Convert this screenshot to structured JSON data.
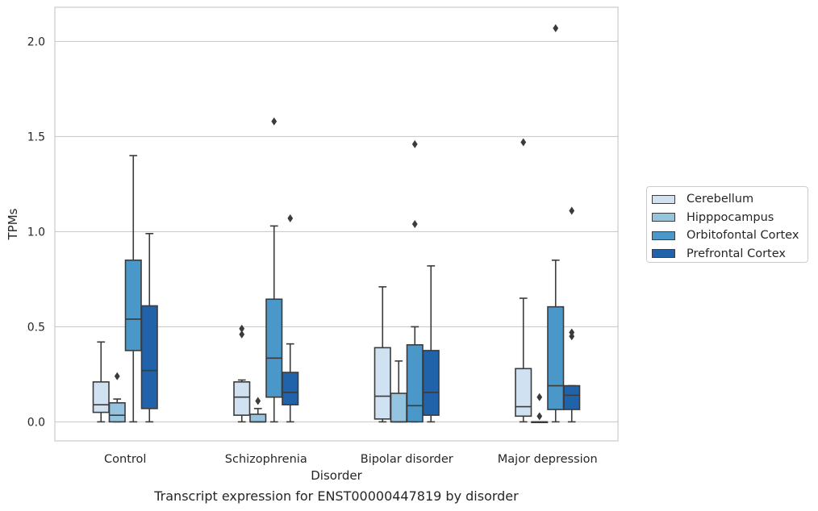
{
  "chart_data": {
    "type": "boxplot",
    "xlabel": "Disorder",
    "ylabel": "TPMs",
    "ylim": [
      -0.1,
      2.18
    ],
    "yticks": [
      "0.0",
      "0.5",
      "1.0",
      "1.5",
      "2.0"
    ],
    "grid": true,
    "legend_position": "right, outside plot",
    "categories": [
      "Control",
      "Schizophrenia",
      "Bipolar disorder",
      "Major depression"
    ],
    "series": [
      {
        "name": "Cerebellum",
        "color": "#d0e1f2",
        "boxes": [
          {
            "whislo": 0.0,
            "q1": 0.05,
            "med": 0.09,
            "q3": 0.21,
            "whishi": 0.42,
            "fliers": []
          },
          {
            "whislo": 0.0,
            "q1": 0.035,
            "med": 0.13,
            "q3": 0.21,
            "whishi": 0.22,
            "fliers": [
              0.46,
              0.49
            ]
          },
          {
            "whislo": 0.0,
            "q1": 0.015,
            "med": 0.135,
            "q3": 0.39,
            "whishi": 0.71,
            "fliers": []
          },
          {
            "whislo": 0.0,
            "q1": 0.03,
            "med": 0.08,
            "q3": 0.28,
            "whishi": 0.65,
            "fliers": [
              1.47
            ]
          }
        ]
      },
      {
        "name": "Hipppocampus",
        "color": "#94c4df",
        "boxes": [
          {
            "whislo": 0.0,
            "q1": 0.0,
            "med": 0.035,
            "q3": 0.1,
            "whishi": 0.12,
            "fliers": [
              0.24
            ]
          },
          {
            "whislo": 0.0,
            "q1": 0.0,
            "med": 0.0,
            "q3": 0.04,
            "whishi": 0.07,
            "fliers": [
              0.11
            ]
          },
          {
            "whislo": 0.0,
            "q1": 0.0,
            "med": 0.0,
            "q3": 0.15,
            "whishi": 0.32,
            "fliers": []
          },
          {
            "whislo": 0.0,
            "q1": 0.0,
            "med": 0.0,
            "q3": 0.0,
            "whishi": 0.0,
            "fliers": [
              0.03,
              0.13
            ]
          }
        ]
      },
      {
        "name": "Orbitofontal Cortex",
        "color": "#4a98c9",
        "boxes": [
          {
            "whislo": 0.0,
            "q1": 0.375,
            "med": 0.54,
            "q3": 0.85,
            "whishi": 1.4,
            "fliers": []
          },
          {
            "whislo": 0.0,
            "q1": 0.13,
            "med": 0.335,
            "q3": 0.645,
            "whishi": 1.03,
            "fliers": [
              1.58
            ]
          },
          {
            "whislo": 0.0,
            "q1": 0.0,
            "med": 0.085,
            "q3": 0.405,
            "whishi": 0.5,
            "fliers": [
              1.04,
              1.46
            ]
          },
          {
            "whislo": 0.0,
            "q1": 0.065,
            "med": 0.19,
            "q3": 0.605,
            "whishi": 0.85,
            "fliers": [
              2.07
            ]
          }
        ]
      },
      {
        "name": "Prefrontal Cortex",
        "color": "#2163aa",
        "boxes": [
          {
            "whislo": 0.0,
            "q1": 0.07,
            "med": 0.27,
            "q3": 0.61,
            "whishi": 0.99,
            "fliers": []
          },
          {
            "whislo": 0.0,
            "q1": 0.09,
            "med": 0.155,
            "q3": 0.26,
            "whishi": 0.41,
            "fliers": [
              1.07
            ]
          },
          {
            "whislo": 0.0,
            "q1": 0.035,
            "med": 0.155,
            "q3": 0.375,
            "whishi": 0.82,
            "fliers": []
          },
          {
            "whislo": 0.0,
            "q1": 0.065,
            "med": 0.14,
            "q3": 0.19,
            "whishi": 0.19,
            "fliers": [
              0.45,
              0.47,
              1.11
            ]
          }
        ]
      }
    ]
  },
  "caption": "Transcript expression for ENST00000447819 by disorder"
}
